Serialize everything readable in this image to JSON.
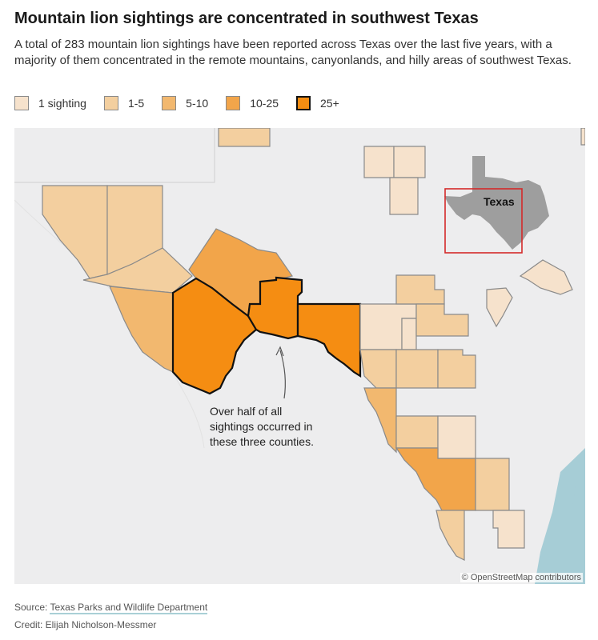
{
  "header": {
    "title": "Mountain lion sightings are concentrated in southwest Texas",
    "subtitle": "A total of 283 mountain lion sightings have been reported across Texas over the last five years, with a majority of them concentrated in the remote mountains, canyonlands, and hilly areas of southwest Texas."
  },
  "legend": {
    "items": [
      {
        "label": "1 sighting",
        "color": "#f6e2cc"
      },
      {
        "label": "1-5",
        "color": "#f3cf9f"
      },
      {
        "label": "5-10",
        "color": "#f2b86f"
      },
      {
        "label": "10-25",
        "color": "#f2a54a"
      },
      {
        "label": "25+",
        "color": "#f58d12"
      }
    ]
  },
  "map": {
    "inset_label": "Texas",
    "annotation": [
      "Over half of all",
      "sightings occurred in",
      "these three counties."
    ],
    "attribution": "© OpenStreetMap contributors",
    "colors": {
      "background": "#ededee",
      "water": "#a6cdd6",
      "inset_state": "#9e9e9e",
      "inset_box": "#d42a2a"
    }
  },
  "footer": {
    "source_prefix": "Source: ",
    "source_link": "Texas Parks and Wildlife Department",
    "credit": "Credit: Elijah Nicholson-Messmer"
  }
}
